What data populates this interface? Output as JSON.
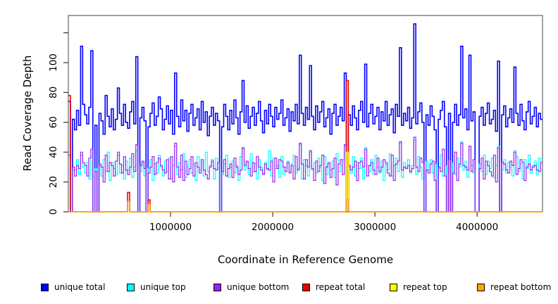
{
  "figure": {
    "background": "#ffffff"
  },
  "axes": {
    "x": {
      "label": "Coordinate in Reference Genome",
      "ticks": [
        {
          "v": 1000000,
          "t": "1000000"
        },
        {
          "v": 2000000,
          "t": "2000000"
        },
        {
          "v": 3000000,
          "t": "3000000"
        },
        {
          "v": 4000000,
          "t": "4000000"
        }
      ]
    },
    "y": {
      "label": "Read Coverage Depth",
      "ticks": [
        {
          "v": 0,
          "t": "0"
        },
        {
          "v": 20,
          "t": "20"
        },
        {
          "v": 40,
          "t": "40"
        },
        {
          "v": 60,
          "t": "60"
        },
        {
          "v": 80,
          "t": "80"
        },
        {
          "v": 100,
          "t": "100"
        },
        {
          "v": 120,
          "t": ""
        }
      ]
    }
  },
  "legend": {
    "items": [
      {
        "label": "unique total",
        "color": "#0000FF"
      },
      {
        "label": "unique top",
        "color": "#00FFFF"
      },
      {
        "label": "unique bottom",
        "color": "#A020F0"
      },
      {
        "label": "repeat total",
        "color": "#EE0000"
      },
      {
        "label": "repeat top",
        "color": "#FFFF00"
      },
      {
        "label": "repeat bottom",
        "color": "#FFA500"
      }
    ]
  },
  "chart_data": {
    "type": "line",
    "step": true,
    "title": "",
    "xlabel": "Coordinate in Reference Genome",
    "ylabel": "Read Coverage Depth",
    "xlim": [
      0,
      4640000
    ],
    "ylim": [
      0,
      131
    ],
    "grid": false,
    "legend_position": "bottom",
    "bin_size": 20000,
    "x_start": 0,
    "series": [
      {
        "name": "unique total",
        "color": "#0000FF",
        "lw": 1.6,
        "values": [
          74,
          0,
          62,
          55,
          68,
          58,
          111,
          72,
          65,
          59,
          70,
          108,
          0,
          58,
          0,
          66,
          61,
          52,
          78,
          64,
          57,
          69,
          55,
          62,
          83,
          66,
          58,
          72,
          60,
          56,
          67,
          74,
          59,
          104,
          0,
          63,
          70,
          61,
          0,
          57,
          66,
          73,
          58,
          64,
          77,
          69,
          55,
          62,
          71,
          59,
          68,
          52,
          93,
          64,
          57,
          75,
          61,
          68,
          54,
          66,
          72,
          58,
          63,
          69,
          55,
          74,
          60,
          67,
          51,
          64,
          70,
          58,
          66,
          61,
          0,
          57,
          72,
          64,
          55,
          68,
          59,
          75,
          63,
          52,
          67,
          88,
          60,
          71,
          56,
          64,
          70,
          58,
          66,
          74,
          61,
          53,
          68,
          59,
          72,
          64,
          57,
          70,
          62,
          66,
          75,
          58,
          63,
          69,
          54,
          67,
          61,
          72,
          59,
          105,
          66,
          58,
          70,
          62,
          98,
          64,
          55,
          71,
          60,
          67,
          74,
          57,
          63,
          69,
          52,
          66,
          72,
          58,
          64,
          70,
          61,
          93,
          0,
          65,
          58,
          71,
          63,
          55,
          68,
          74,
          60,
          99,
          57,
          66,
          72,
          59,
          64,
          70,
          55,
          67,
          61,
          74,
          58,
          65,
          69,
          53,
          72,
          64,
          110,
          58,
          66,
          61,
          70,
          56,
          63,
          126,
          59,
          67,
          73,
          60,
          0,
          65,
          58,
          71,
          64,
          55,
          0,
          62,
          68,
          74,
          57,
          0,
          66,
          0,
          60,
          72,
          58,
          65,
          111,
          63,
          69,
          55,
          105,
          61,
          67,
          0,
          0,
          64,
          70,
          58,
          66,
          73,
          59,
          62,
          68,
          54,
          101,
          0,
          65,
          71,
          57,
          63,
          69,
          60,
          97,
          66,
          58,
          72,
          61,
          55,
          67,
          74,
          59,
          64,
          70,
          57,
          66,
          62
        ]
      },
      {
        "name": "unique top",
        "color": "#00FFFF",
        "lw": 1.2,
        "values": [
          36,
          0,
          28,
          28,
          35,
          25,
          38,
          30,
          26,
          33,
          22,
          37,
          0,
          29,
          0,
          31,
          24,
          35,
          27,
          40,
          21,
          33,
          29,
          25,
          38,
          26,
          31,
          22,
          34,
          28,
          36,
          23,
          30,
          41,
          0,
          27,
          33,
          24,
          0,
          29,
          35,
          21,
          32,
          26,
          38,
          30,
          24,
          34,
          27,
          36,
          22,
          31,
          44,
          25,
          33,
          28,
          39,
          23,
          30,
          35,
          26,
          32,
          21,
          37,
          28,
          33,
          24,
          40,
          27,
          31,
          35,
          22,
          36,
          29,
          0,
          25,
          32,
          38,
          23,
          30,
          34,
          26,
          31,
          21,
          37,
          42,
          28,
          33,
          25,
          39,
          27,
          32,
          22,
          35,
          30,
          26,
          33,
          28,
          41,
          24,
          36,
          29,
          31,
          23,
          37,
          25,
          30,
          34,
          27,
          32,
          38,
          26,
          29,
          45,
          22,
          35,
          31,
          24,
          40,
          28,
          33,
          26,
          36,
          30,
          21,
          37,
          25,
          32,
          28,
          34,
          23,
          39,
          27,
          31,
          35,
          44,
          0,
          30,
          26,
          37,
          24,
          33,
          29,
          36,
          22,
          43,
          31,
          27,
          35,
          25,
          38,
          30,
          26,
          34,
          21,
          32,
          28,
          39,
          24,
          31,
          36,
          27,
          46,
          23,
          33,
          29,
          35,
          26,
          31,
          48,
          25,
          37,
          30,
          22,
          0,
          34,
          28,
          35,
          26,
          32,
          0,
          29,
          38,
          24,
          31,
          0,
          27,
          0,
          33,
          25,
          36,
          30,
          47,
          28,
          34,
          23,
          42,
          31,
          26,
          0,
          0,
          32,
          27,
          38,
          25,
          34,
          29,
          36,
          23,
          31,
          44,
          0,
          28,
          35,
          26,
          33,
          30,
          24,
          41,
          37,
          27,
          32,
          22,
          35,
          29,
          38,
          26,
          31,
          34,
          25,
          36,
          28
        ]
      },
      {
        "name": "unique bottom",
        "color": "#A020F0",
        "lw": 1.2,
        "values": [
          38,
          0,
          30,
          24,
          31,
          29,
          40,
          33,
          31,
          24,
          36,
          42,
          0,
          27,
          0,
          32,
          30,
          20,
          38,
          27,
          33,
          31,
          24,
          34,
          40,
          32,
          26,
          37,
          28,
          25,
          30,
          39,
          27,
          45,
          0,
          31,
          34,
          29,
          0,
          26,
          30,
          37,
          25,
          33,
          36,
          31,
          28,
          26,
          35,
          22,
          37,
          20,
          46,
          30,
          23,
          38,
          21,
          34,
          25,
          29,
          37,
          24,
          33,
          30,
          26,
          35,
          28,
          25,
          22,
          30,
          34,
          29,
          28,
          33,
          0,
          27,
          35,
          24,
          29,
          32,
          23,
          36,
          30,
          25,
          28,
          43,
          31,
          34,
          29,
          24,
          33,
          27,
          37,
          30,
          28,
          25,
          32,
          29,
          28,
          34,
          20,
          36,
          29,
          35,
          34,
          30,
          27,
          33,
          26,
          31,
          22,
          37,
          28,
          46,
          32,
          22,
          35,
          30,
          41,
          29,
          21,
          34,
          27,
          31,
          38,
          19,
          30,
          33,
          23,
          29,
          36,
          18,
          32,
          35,
          25,
          45,
          0,
          31,
          28,
          30,
          34,
          21,
          33,
          34,
          30,
          42,
          24,
          31,
          33,
          28,
          25,
          36,
          27,
          30,
          35,
          33,
          26,
          24,
          38,
          21,
          32,
          34,
          47,
          28,
          30,
          29,
          31,
          27,
          29,
          50,
          30,
          27,
          36,
          33,
          0,
          28,
          26,
          32,
          34,
          21,
          0,
          30,
          27,
          42,
          24,
          0,
          35,
          0,
          26,
          40,
          21,
          32,
          46,
          31,
          30,
          28,
          44,
          27,
          35,
          0,
          0,
          29,
          36,
          22,
          34,
          31,
          27,
          24,
          38,
          20,
          43,
          0,
          33,
          32,
          28,
          26,
          34,
          31,
          40,
          25,
          29,
          35,
          33,
          21,
          30,
          32,
          28,
          30,
          31,
          28,
          27,
          33
        ]
      },
      {
        "name": "repeat total",
        "color": "#EE0000",
        "lw": 1.6,
        "base": 0,
        "spikes": {
          "0": 78,
          "29": 13,
          "39": 8,
          "136": 88
        }
      },
      {
        "name": "repeat top",
        "color": "#FFFF00",
        "lw": 1.2,
        "base": 0,
        "spikes": {
          "136": 40
        }
      },
      {
        "name": "repeat bottom",
        "color": "#FFA500",
        "lw": 1.4,
        "base": 0,
        "spikes": {
          "29": 7,
          "39": 5,
          "136": 8
        }
      }
    ]
  }
}
